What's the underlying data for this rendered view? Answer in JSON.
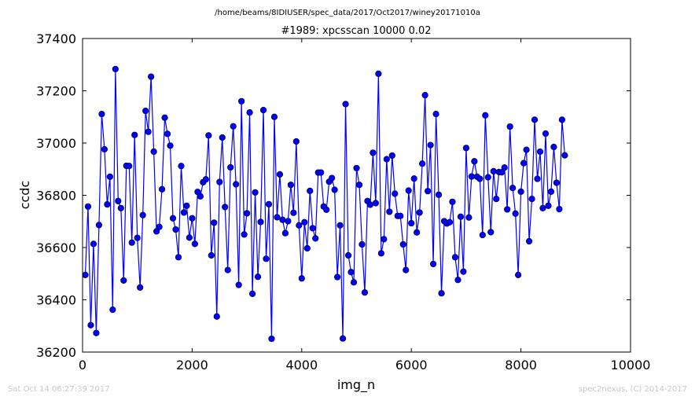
{
  "suptitle": "/home/beams/8IDIUSER/spec_data/2017/Oct2017/winey20171010a",
  "footer": {
    "timestamp": "Sat Oct 14 06:27:39 2017",
    "credit": "spec2nexus, (C) 2014-2017"
  },
  "chart_data": {
    "type": "line",
    "title": "#1989: xpcsscan 10000 0.02",
    "xlabel": "img_n",
    "ylabel": "ccdc",
    "xlim": [
      0,
      10000
    ],
    "ylim": [
      36200,
      37400
    ],
    "xticks": [
      0,
      2000,
      4000,
      6000,
      8000,
      10000
    ],
    "yticks": [
      36200,
      36400,
      36600,
      36800,
      37000,
      37200,
      37400
    ],
    "color": "#0000ff",
    "marker": "circle",
    "grid": false,
    "x_start": 50,
    "x_step": 50,
    "y": [
      36495,
      36757,
      36303,
      36614,
      36273,
      36686,
      37111,
      36976,
      36765,
      36871,
      36362,
      37283,
      36778,
      36751,
      36474,
      36913,
      36912,
      36619,
      37031,
      36637,
      36447,
      36724,
      37123,
      37043,
      37254,
      36967,
      36662,
      36679,
      36823,
      37097,
      37035,
      36990,
      36712,
      36669,
      36563,
      36912,
      36734,
      36760,
      36638,
      36712,
      36614,
      36813,
      36796,
      36850,
      36861,
      37029,
      36570,
      36695,
      36336,
      36851,
      37021,
      36755,
      36514,
      36907,
      37064,
      36842,
      36457,
      37160,
      36650,
      36731,
      37117,
      36423,
      36811,
      36488,
      36698,
      37126,
      36557,
      36766,
      36251,
      37100,
      36716,
      36880,
      36706,
      36655,
      36701,
      36840,
      36733,
      37006,
      36685,
      36482,
      36697,
      36597,
      36817,
      36674,
      36635,
      36887,
      36887,
      36757,
      36745,
      36852,
      36866,
      36821,
      36487,
      36685,
      36252,
      37149,
      36570,
      36506,
      36467,
      36904,
      36840,
      36612,
      36428,
      36778,
      36764,
      36963,
      36770,
      37265,
      36578,
      36632,
      36938,
      36737,
      36952,
      36806,
      36721,
      36721,
      36612,
      36514,
      36818,
      36693,
      36864,
      36658,
      36734,
      36921,
      37183,
      36816,
      36992,
      36537,
      37111,
      36802,
      36425,
      36701,
      36692,
      36697,
      36775,
      36563,
      36476,
      36718,
      36508,
      36981,
      36715,
      36872,
      36930,
      36871,
      36863,
      36648,
      37106,
      36869,
      36659,
      36892,
      36786,
      36889,
      36888,
      36906,
      36746,
      37063,
      36828,
      36730,
      36495,
      36814,
      36923,
      36974,
      36624,
      36786,
      37089,
      36863,
      36967,
      36751,
      37036,
      36760,
      36814,
      36985,
      36848,
      36747,
      37089,
      36953
    ]
  }
}
